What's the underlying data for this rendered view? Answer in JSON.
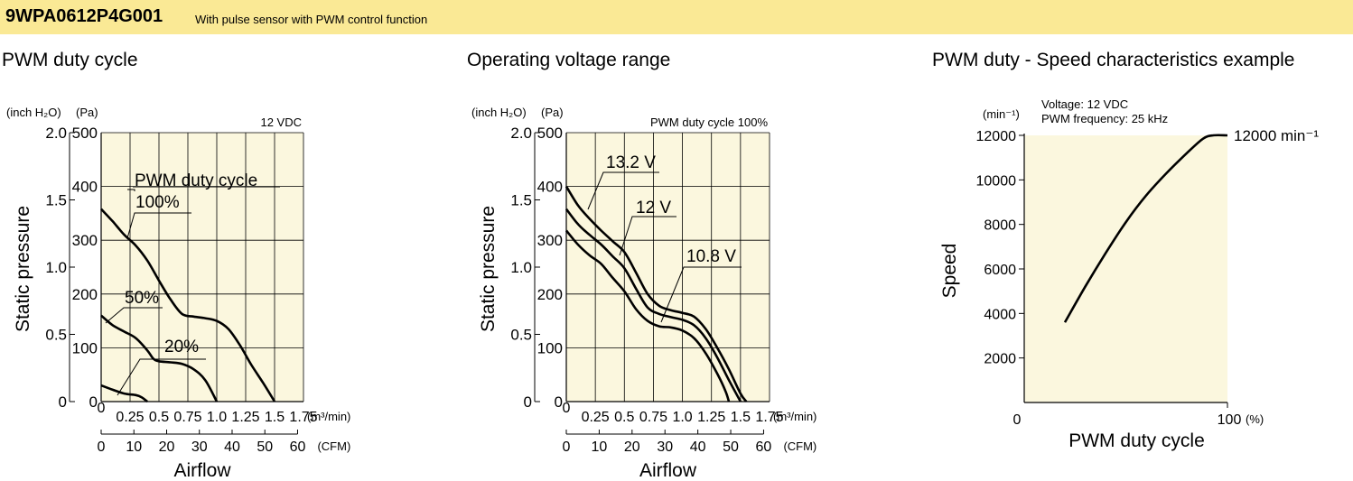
{
  "header": {
    "model": "9WPA0612P4G001",
    "description": "With pulse sensor with PWM control function"
  },
  "colors": {
    "header_bg": "#fae995",
    "plot_bg": "#fbf7de",
    "line": "#000000"
  },
  "chart_data": [
    {
      "type": "line",
      "title": "PWM duty cycle",
      "condition": "12 VDC",
      "legend_title": "PWM duty cycle",
      "xlabel": "Airflow",
      "ylabel": "Static pressure",
      "x_unit": "(m³/min)",
      "x_unit2": "(CFM)",
      "y_unit_left": "(inch H₂O)",
      "y_unit_right": "(Pa)",
      "xlim": [
        0,
        1.75
      ],
      "ylim": [
        0,
        500
      ],
      "x_ticks": [
        "0",
        "0.25",
        "0.5",
        "0.75",
        "1.0",
        "1.25",
        "1.5",
        "1.75"
      ],
      "x2_ticks": [
        "0",
        "10",
        "20",
        "30",
        "40",
        "50",
        "60"
      ],
      "y_ticks": [
        "0",
        "100",
        "200",
        "300",
        "400",
        "500"
      ],
      "y2_ticks": [
        "0",
        "0.5",
        "1.0",
        "1.5",
        "2.0"
      ],
      "grid": true,
      "series": [
        {
          "name": "100%",
          "points": [
            [
              0,
              358
            ],
            [
              0.1,
              335
            ],
            [
              0.2,
              310
            ],
            [
              0.3,
              290
            ],
            [
              0.4,
              262
            ],
            [
              0.5,
              225
            ],
            [
              0.6,
              190
            ],
            [
              0.7,
              163
            ],
            [
              0.8,
              158
            ],
            [
              0.9,
              155
            ],
            [
              1.0,
              150
            ],
            [
              1.1,
              135
            ],
            [
              1.2,
              105
            ],
            [
              1.3,
              68
            ],
            [
              1.4,
              35
            ],
            [
              1.5,
              0
            ]
          ]
        },
        {
          "name": "50%",
          "points": [
            [
              0,
              160
            ],
            [
              0.1,
              142
            ],
            [
              0.2,
              130
            ],
            [
              0.3,
              118
            ],
            [
              0.4,
              95
            ],
            [
              0.45,
              80
            ],
            [
              0.5,
              75
            ],
            [
              0.6,
              73
            ],
            [
              0.7,
              70
            ],
            [
              0.8,
              60
            ],
            [
              0.9,
              40
            ],
            [
              1.0,
              0
            ]
          ]
        },
        {
          "name": "20%",
          "points": [
            [
              0,
              30
            ],
            [
              0.1,
              22
            ],
            [
              0.2,
              15
            ],
            [
              0.3,
              12
            ],
            [
              0.35,
              8
            ],
            [
              0.4,
              0
            ]
          ]
        }
      ]
    },
    {
      "type": "line",
      "title": "Operating voltage range",
      "condition": "PWM duty cycle 100%",
      "xlabel": "Airflow",
      "ylabel": "Static pressure",
      "x_unit": "(m³/min)",
      "x_unit2": "(CFM)",
      "y_unit_left": "(inch H₂O)",
      "y_unit_right": "(Pa)",
      "xlim": [
        0,
        1.75
      ],
      "ylim": [
        0,
        500
      ],
      "x_ticks": [
        "0",
        "0.25",
        "0.5",
        "0.75",
        "1.0",
        "1.25",
        "1.5",
        "1.75"
      ],
      "x2_ticks": [
        "0",
        "10",
        "20",
        "30",
        "40",
        "50",
        "60"
      ],
      "y_ticks": [
        "0",
        "100",
        "200",
        "300",
        "400",
        "500"
      ],
      "y2_ticks": [
        "0",
        "0.5",
        "1.0",
        "1.5",
        "2.0"
      ],
      "grid": true,
      "series": [
        {
          "name": "13.2 V",
          "points": [
            [
              0,
              400
            ],
            [
              0.1,
              365
            ],
            [
              0.2,
              340
            ],
            [
              0.3,
              318
            ],
            [
              0.4,
              298
            ],
            [
              0.5,
              278
            ],
            [
              0.6,
              240
            ],
            [
              0.7,
              200
            ],
            [
              0.8,
              178
            ],
            [
              0.9,
              170
            ],
            [
              1.0,
              165
            ],
            [
              1.1,
              158
            ],
            [
              1.2,
              135
            ],
            [
              1.3,
              100
            ],
            [
              1.4,
              60
            ],
            [
              1.5,
              15
            ],
            [
              1.55,
              0
            ]
          ]
        },
        {
          "name": "12 V",
          "points": [
            [
              0,
              358
            ],
            [
              0.1,
              330
            ],
            [
              0.2,
              310
            ],
            [
              0.3,
              292
            ],
            [
              0.4,
              270
            ],
            [
              0.5,
              248
            ],
            [
              0.6,
              210
            ],
            [
              0.7,
              175
            ],
            [
              0.8,
              163
            ],
            [
              0.9,
              157
            ],
            [
              1.0,
              152
            ],
            [
              1.1,
              142
            ],
            [
              1.2,
              118
            ],
            [
              1.3,
              82
            ],
            [
              1.4,
              40
            ],
            [
              1.5,
              0
            ]
          ]
        },
        {
          "name": "10.8 V",
          "points": [
            [
              0,
              318
            ],
            [
              0.1,
              292
            ],
            [
              0.2,
              272
            ],
            [
              0.3,
              256
            ],
            [
              0.4,
              230
            ],
            [
              0.5,
              205
            ],
            [
              0.6,
              172
            ],
            [
              0.7,
              150
            ],
            [
              0.8,
              140
            ],
            [
              0.9,
              138
            ],
            [
              1.0,
              132
            ],
            [
              1.1,
              118
            ],
            [
              1.2,
              90
            ],
            [
              1.3,
              52
            ],
            [
              1.37,
              20
            ],
            [
              1.4,
              0
            ]
          ]
        }
      ]
    },
    {
      "type": "line",
      "title": "PWM duty - Speed characteristics example",
      "annotation_line1": "Voltage: 12 VDC",
      "annotation_line2": "PWM frequency: 25 kHz",
      "end_label": "12000 min⁻¹",
      "xlabel": "PWM duty cycle",
      "ylabel": "Speed",
      "x_unit": "(%)",
      "y_unit": "(min⁻¹)",
      "xlim": [
        0,
        100
      ],
      "ylim": [
        0,
        12000
      ],
      "x_ticks": [
        "0",
        "100"
      ],
      "y_ticks": [
        "2000",
        "4000",
        "6000",
        "8000",
        "10000",
        "12000"
      ],
      "grid": false,
      "series": [
        {
          "name": "Speed",
          "points": [
            [
              20,
              3600
            ],
            [
              30,
              5200
            ],
            [
              40,
              6700
            ],
            [
              50,
              8100
            ],
            [
              60,
              9300
            ],
            [
              70,
              10300
            ],
            [
              80,
              11200
            ],
            [
              88,
              11850
            ],
            [
              93,
              12000
            ],
            [
              100,
              12000
            ]
          ]
        }
      ]
    }
  ]
}
